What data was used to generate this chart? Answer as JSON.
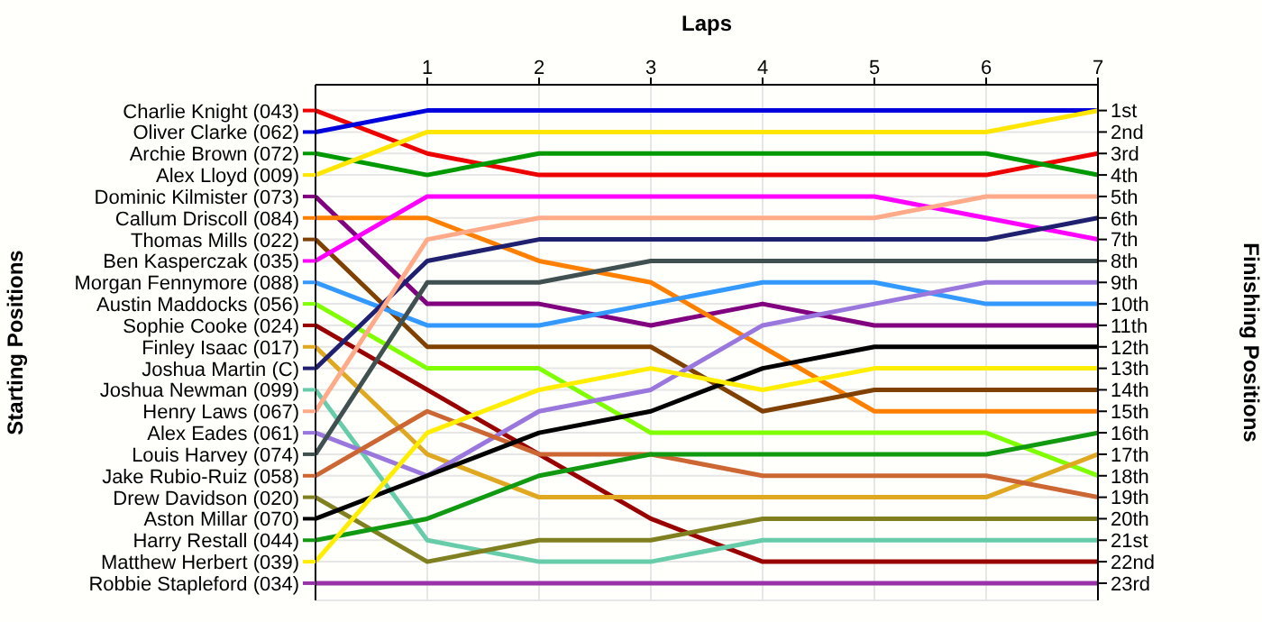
{
  "chart_data": {
    "type": "line",
    "xlabel": "Laps",
    "ylabel": "Finishing Positions",
    "legend_title": "Starting Positions",
    "legend": "left",
    "x": [
      0,
      1,
      2,
      3,
      4,
      5,
      6,
      7
    ],
    "xlim": [
      0,
      7
    ],
    "xticks": [
      1,
      2,
      3,
      4,
      5,
      6,
      7
    ],
    "ylim": [
      23.8,
      -0.2
    ],
    "yticks": [
      {
        "value": 1,
        "label": "1st"
      },
      {
        "value": 2,
        "label": "2nd"
      },
      {
        "value": 3,
        "label": "3rd"
      },
      {
        "value": 4,
        "label": "4th"
      },
      {
        "value": 5,
        "label": "5th"
      },
      {
        "value": 6,
        "label": "6th"
      },
      {
        "value": 7,
        "label": "7th"
      },
      {
        "value": 8,
        "label": "8th"
      },
      {
        "value": 9,
        "label": "9th"
      },
      {
        "value": 10,
        "label": "10th"
      },
      {
        "value": 11,
        "label": "11th"
      },
      {
        "value": 12,
        "label": "12th"
      },
      {
        "value": 13,
        "label": "13th"
      },
      {
        "value": 14,
        "label": "14th"
      },
      {
        "value": 15,
        "label": "15th"
      },
      {
        "value": 16,
        "label": "16th"
      },
      {
        "value": 17,
        "label": "17th"
      },
      {
        "value": 18,
        "label": "18th"
      },
      {
        "value": 19,
        "label": "19th"
      },
      {
        "value": 20,
        "label": "20th"
      },
      {
        "value": 21,
        "label": "21st"
      },
      {
        "value": 22,
        "label": "22nd"
      },
      {
        "value": 23,
        "label": "23rd"
      }
    ],
    "grid": true,
    "marker": "none",
    "line_style": "solid",
    "series": [
      {
        "name": "Charlie Knight (043)",
        "color": "#ee0000",
        "values": [
          1,
          3,
          4,
          4,
          4,
          4,
          4,
          3
        ]
      },
      {
        "name": "Oliver Clarke (062)",
        "color": "#0000dd",
        "values": [
          2,
          1,
          1,
          1,
          1,
          1,
          1,
          1
        ]
      },
      {
        "name": "Archie Brown (072)",
        "color": "#009900",
        "values": [
          3,
          4,
          3,
          3,
          3,
          3,
          3,
          4
        ]
      },
      {
        "name": "Alex Lloyd (009)",
        "color": "#ffe600",
        "values": [
          4,
          2,
          2,
          2,
          2,
          2,
          2,
          1
        ]
      },
      {
        "name": "Dominic Kilmister (073)",
        "color": "#800080",
        "values": [
          5,
          10,
          10,
          11,
          10,
          11,
          11,
          11
        ]
      },
      {
        "name": "Callum Driscoll (084)",
        "color": "#ff8000",
        "values": [
          6,
          6,
          8,
          9,
          12,
          15,
          15,
          15
        ]
      },
      {
        "name": "Thomas Mills (022)",
        "color": "#804000",
        "values": [
          7,
          12,
          12,
          12,
          15,
          14,
          14,
          14
        ]
      },
      {
        "name": "Ben Kasperczak (035)",
        "color": "#ff00ff",
        "values": [
          8,
          5,
          5,
          5,
          5,
          5,
          6,
          7
        ]
      },
      {
        "name": "Morgan Fennymore (088)",
        "color": "#3399ff",
        "values": [
          9,
          11,
          11,
          10,
          9,
          9,
          10,
          10
        ]
      },
      {
        "name": "Austin Maddocks (056)",
        "color": "#80ff00",
        "values": [
          10,
          13,
          13,
          16,
          16,
          16,
          16,
          18
        ]
      },
      {
        "name": "Sophie Cooke (024)",
        "color": "#990000",
        "values": [
          11,
          14,
          17,
          20,
          22,
          22,
          22,
          22
        ]
      },
      {
        "name": "Finley Isaac (017)",
        "color": "#e0a820",
        "values": [
          12,
          17,
          19,
          19,
          19,
          19,
          19,
          17
        ]
      },
      {
        "name": "Joshua Martin (C)",
        "color": "#202070",
        "values": [
          13,
          8,
          7,
          7,
          7,
          7,
          7,
          6
        ]
      },
      {
        "name": "Joshua Newman (099)",
        "color": "#66ccaa",
        "values": [
          14,
          21,
          22,
          22,
          21,
          21,
          21,
          21
        ]
      },
      {
        "name": "Henry Laws (067)",
        "color": "#ffaa88",
        "values": [
          15,
          7,
          6,
          6,
          6,
          6,
          5,
          5
        ]
      },
      {
        "name": "Alex Eades (061)",
        "color": "#9977dd",
        "values": [
          16,
          18,
          15,
          14,
          11,
          10,
          9,
          9
        ]
      },
      {
        "name": "Louis Harvey (074)",
        "color": "#405050",
        "values": [
          17,
          9,
          9,
          8,
          8,
          8,
          8,
          8
        ]
      },
      {
        "name": "Jake Rubio-Ruiz (058)",
        "color": "#cc6633",
        "values": [
          18,
          15,
          17,
          17,
          18,
          18,
          18,
          19
        ]
      },
      {
        "name": "Drew Davidson (020)",
        "color": "#808020",
        "values": [
          19,
          22,
          21,
          21,
          20,
          20,
          20,
          20
        ]
      },
      {
        "name": "Aston Millar (070)",
        "color": "#000000",
        "values": [
          20,
          18,
          16,
          15,
          13,
          12,
          12,
          12
        ]
      },
      {
        "name": "Harry Restall (044)",
        "color": "#119911",
        "values": [
          21,
          20,
          18,
          17,
          17,
          17,
          17,
          16
        ]
      },
      {
        "name": "Matthew Herbert (039)",
        "color": "#ffee00",
        "values": [
          22,
          16,
          14,
          13,
          14,
          13,
          13,
          13
        ]
      },
      {
        "name": "Robbie Stapleford (034)",
        "color": "#9933aa",
        "values": [
          23,
          23,
          23,
          23,
          23,
          23,
          23,
          23
        ]
      }
    ]
  }
}
